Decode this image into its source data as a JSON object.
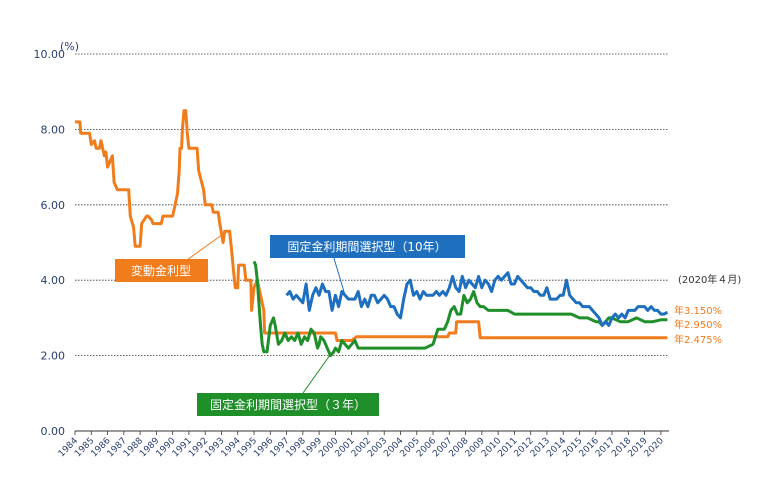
{
  "chart_data": {
    "type": "line",
    "title": "",
    "xlabel": "",
    "ylabel": "",
    "y_unit": "(%)",
    "ylim": [
      0,
      10
    ],
    "xlim": [
      1984,
      2020.5
    ],
    "y_ticks": [
      "0.00",
      "2.00",
      "4.00",
      "6.00",
      "8.00",
      "10.00"
    ],
    "x_ticks": [
      "1984",
      "1985",
      "1986",
      "1987",
      "1988",
      "1989",
      "1990",
      "1991",
      "1992",
      "1993",
      "1994",
      "1995",
      "1996",
      "1997",
      "1998",
      "1999",
      "2000",
      "2001",
      "2002",
      "2003",
      "2004",
      "2005",
      "2006",
      "2007",
      "2008",
      "2009",
      "2010",
      "2011",
      "2012",
      "2013",
      "2014",
      "2015",
      "2016",
      "2017",
      "2018",
      "2019",
      "2020"
    ],
    "grid": true,
    "date_note": "(2020年４月)",
    "series": [
      {
        "name": "変動金利型",
        "color": "#f07c1c",
        "end_label": "年2.475%",
        "x": [
          1984.0,
          1984.3,
          1984.35,
          1984.9,
          1985.0,
          1985.2,
          1985.3,
          1985.5,
          1985.6,
          1985.8,
          1985.9,
          1986.0,
          1986.1,
          1986.3,
          1986.4,
          1986.6,
          1986.7,
          1987.3,
          1987.4,
          1987.6,
          1987.7,
          1988.0,
          1988.1,
          1988.4,
          1988.5,
          1988.7,
          1988.8,
          1989.3,
          1989.4,
          1989.8,
          1989.9,
          1990.0,
          1990.1,
          1990.3,
          1990.4,
          1990.45,
          1990.55,
          1990.6,
          1990.7,
          1990.8,
          1990.9,
          1991.0,
          1991.1,
          1991.5,
          1991.6,
          1991.9,
          1992.0,
          1992.4,
          1992.5,
          1992.8,
          1992.9,
          1993.1,
          1993.2,
          1993.5,
          1993.6,
          1993.75,
          1993.85,
          1994.0,
          1994.05,
          1994.4,
          1994.5,
          1994.8,
          1994.85,
          1995.0,
          1995.2,
          1995.6,
          1995.65,
          1996.0,
          1998.0,
          2000.0,
          2000.1,
          2001.0,
          2001.3,
          2006.9,
          2007.0,
          2007.4,
          2007.45,
          2008.8,
          2008.9,
          2020.4
        ],
        "y": [
          8.2,
          8.2,
          7.9,
          7.9,
          7.6,
          7.7,
          7.5,
          7.5,
          7.7,
          7.3,
          7.4,
          7.0,
          7.1,
          7.3,
          6.6,
          6.4,
          6.4,
          6.4,
          5.7,
          5.4,
          4.9,
          4.9,
          5.5,
          5.7,
          5.7,
          5.6,
          5.5,
          5.5,
          5.7,
          5.7,
          5.7,
          5.7,
          5.9,
          6.3,
          6.9,
          7.5,
          7.5,
          8.0,
          8.5,
          8.5,
          7.9,
          7.5,
          7.5,
          7.5,
          6.9,
          6.4,
          6.0,
          6.0,
          5.8,
          5.8,
          5.5,
          5.0,
          5.3,
          5.3,
          4.9,
          4.2,
          3.8,
          3.8,
          4.4,
          4.4,
          4.0,
          4.0,
          3.2,
          3.8,
          4.0,
          3.2,
          2.6,
          2.6,
          2.6,
          2.6,
          2.4,
          2.4,
          2.5,
          2.5,
          2.6,
          2.6,
          2.9,
          2.9,
          2.475,
          2.475
        ]
      },
      {
        "name": "固定金利期間選択型（10年）",
        "color": "#1f6fbf",
        "end_label": "年3.150%",
        "x": [
          1997.0,
          1997.2,
          1997.4,
          1997.6,
          1997.8,
          1998.0,
          1998.2,
          1998.4,
          1998.6,
          1998.8,
          1999.0,
          1999.2,
          1999.4,
          1999.6,
          1999.8,
          2000.0,
          2000.2,
          2000.4,
          2000.6,
          2000.8,
          2001.0,
          2001.2,
          2001.4,
          2001.6,
          2001.8,
          2002.0,
          2002.2,
          2002.4,
          2002.6,
          2002.8,
          2003.0,
          2003.2,
          2003.4,
          2003.6,
          2003.8,
          2004.0,
          2004.2,
          2004.4,
          2004.6,
          2004.8,
          2005.0,
          2005.2,
          2005.4,
          2005.6,
          2005.8,
          2006.0,
          2006.2,
          2006.4,
          2006.6,
          2006.8,
          2007.0,
          2007.2,
          2007.4,
          2007.6,
          2007.8,
          2008.0,
          2008.2,
          2008.4,
          2008.6,
          2008.8,
          2009.0,
          2009.2,
          2009.4,
          2009.6,
          2009.8,
          2010.0,
          2010.2,
          2010.4,
          2010.6,
          2010.8,
          2011.0,
          2011.2,
          2011.4,
          2011.6,
          2011.8,
          2012.0,
          2012.2,
          2012.4,
          2012.6,
          2012.8,
          2013.0,
          2013.2,
          2013.4,
          2013.6,
          2013.8,
          2014.0,
          2014.2,
          2014.4,
          2014.6,
          2014.8,
          2015.0,
          2015.2,
          2015.4,
          2015.6,
          2015.8,
          2016.0,
          2016.2,
          2016.4,
          2016.6,
          2016.8,
          2017.0,
          2017.2,
          2017.4,
          2017.6,
          2017.8,
          2018.0,
          2018.2,
          2018.4,
          2018.6,
          2018.8,
          2019.0,
          2019.2,
          2019.4,
          2019.6,
          2019.8,
          2020.0,
          2020.2,
          2020.4
        ],
        "y": [
          3.6,
          3.7,
          3.5,
          3.6,
          3.5,
          3.4,
          3.9,
          3.2,
          3.6,
          3.8,
          3.6,
          3.9,
          3.7,
          3.7,
          3.2,
          3.6,
          3.3,
          3.7,
          3.6,
          3.5,
          3.5,
          3.5,
          3.7,
          3.3,
          3.5,
          3.3,
          3.6,
          3.6,
          3.4,
          3.5,
          3.6,
          3.5,
          3.3,
          3.3,
          3.1,
          3.0,
          3.5,
          3.9,
          4.0,
          3.6,
          3.7,
          3.5,
          3.7,
          3.6,
          3.6,
          3.6,
          3.7,
          3.6,
          3.7,
          3.6,
          3.8,
          4.1,
          3.8,
          3.7,
          4.1,
          3.8,
          4.0,
          3.9,
          3.8,
          4.1,
          3.8,
          4.0,
          3.9,
          3.7,
          4.0,
          4.1,
          4.0,
          4.1,
          4.2,
          3.9,
          3.9,
          4.1,
          4.0,
          3.9,
          3.8,
          3.8,
          3.7,
          3.7,
          3.6,
          3.6,
          3.8,
          3.5,
          3.5,
          3.5,
          3.6,
          3.6,
          4.0,
          3.6,
          3.5,
          3.4,
          3.4,
          3.3,
          3.3,
          3.3,
          3.2,
          3.1,
          3.0,
          2.8,
          2.9,
          2.8,
          3.0,
          3.1,
          3.0,
          3.1,
          3.0,
          3.2,
          3.2,
          3.2,
          3.3,
          3.3,
          3.3,
          3.2,
          3.3,
          3.2,
          3.2,
          3.1,
          3.1,
          3.15
        ]
      },
      {
        "name": "固定金利期間選択型（３年）",
        "color": "#1f8f2a",
        "end_label": "年2.950%",
        "x": [
          1995.0,
          1995.1,
          1995.2,
          1995.3,
          1995.4,
          1995.5,
          1995.6,
          1995.8,
          1996.0,
          1996.2,
          1996.3,
          1996.5,
          1996.7,
          1996.9,
          1997.1,
          1997.3,
          1997.5,
          1997.7,
          1997.9,
          1998.1,
          1998.3,
          1998.5,
          1998.7,
          1998.9,
          1999.0,
          1999.1,
          1999.3,
          1999.5,
          1999.7,
          1999.9,
          2000.0,
          2000.2,
          2000.4,
          2000.6,
          2000.8,
          2001.0,
          2001.2,
          2001.4,
          2001.6,
          2001.8,
          2002.0,
          2002.5,
          2003.0,
          2003.5,
          2004.0,
          2004.5,
          2005.0,
          2005.5,
          2006.0,
          2006.3,
          2006.5,
          2006.7,
          2006.9,
          2007.1,
          2007.3,
          2007.5,
          2007.7,
          2007.9,
          2008.1,
          2008.3,
          2008.5,
          2008.7,
          2008.9,
          2009.1,
          2009.4,
          2009.7,
          2010.0,
          2010.3,
          2010.6,
          2011.0,
          2011.5,
          2012.0,
          2012.5,
          2013.0,
          2013.5,
          2014.0,
          2014.5,
          2015.0,
          2015.5,
          2016.0,
          2016.2,
          2016.4,
          2016.6,
          2016.8,
          2017.0,
          2017.5,
          2018.0,
          2018.5,
          2019.0,
          2019.5,
          2020.0,
          2020.4
        ],
        "y": [
          4.5,
          4.4,
          4.0,
          3.4,
          2.8,
          2.3,
          2.1,
          2.1,
          2.8,
          3.0,
          2.8,
          2.3,
          2.4,
          2.6,
          2.4,
          2.5,
          2.4,
          2.6,
          2.3,
          2.5,
          2.4,
          2.7,
          2.6,
          2.2,
          2.3,
          2.5,
          2.4,
          2.2,
          2.0,
          2.1,
          2.2,
          2.1,
          2.4,
          2.3,
          2.2,
          2.3,
          2.4,
          2.2,
          2.2,
          2.2,
          2.2,
          2.2,
          2.2,
          2.2,
          2.2,
          2.2,
          2.2,
          2.2,
          2.3,
          2.7,
          2.7,
          2.7,
          2.9,
          3.2,
          3.3,
          3.1,
          3.1,
          3.6,
          3.4,
          3.5,
          3.7,
          3.4,
          3.3,
          3.3,
          3.2,
          3.2,
          3.2,
          3.2,
          3.2,
          3.1,
          3.1,
          3.1,
          3.1,
          3.1,
          3.1,
          3.1,
          3.1,
          3.0,
          3.0,
          2.9,
          2.9,
          2.8,
          2.9,
          3.0,
          3.0,
          2.9,
          2.9,
          3.0,
          2.9,
          2.9,
          2.95,
          2.95
        ]
      }
    ]
  }
}
